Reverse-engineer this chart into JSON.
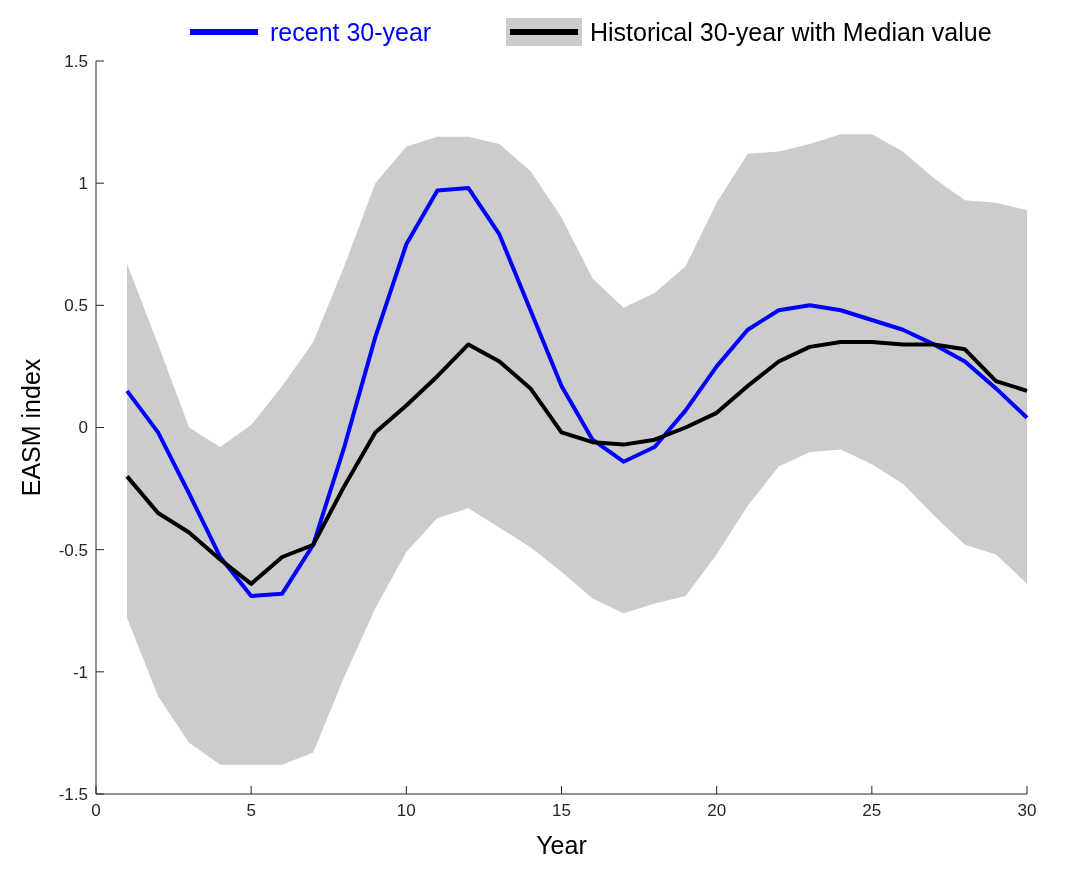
{
  "chart_data": {
    "type": "line",
    "xlabel": "Year",
    "ylabel": "EASM index",
    "x": [
      1,
      2,
      3,
      4,
      5,
      6,
      7,
      8,
      9,
      10,
      11,
      12,
      13,
      14,
      15,
      16,
      17,
      18,
      19,
      20,
      21,
      22,
      23,
      24,
      25,
      26,
      27,
      28,
      29,
      30
    ],
    "xlim": [
      0,
      30
    ],
    "ylim": [
      -1.5,
      1.5
    ],
    "xticks": [
      0,
      5,
      10,
      15,
      20,
      25,
      30
    ],
    "yticks": [
      -1.5,
      -1,
      -0.5,
      0,
      0.5,
      1,
      1.5
    ],
    "grid": false,
    "legend": "top",
    "line_style": "solid",
    "marker": "none",
    "series": [
      {
        "name": "recent 30-year",
        "color": "#0000ff",
        "values": [
          0.15,
          -0.02,
          -0.27,
          -0.53,
          -0.69,
          -0.68,
          -0.48,
          -0.08,
          0.37,
          0.75,
          0.97,
          0.98,
          0.79,
          0.48,
          0.17,
          -0.05,
          -0.14,
          -0.08,
          0.07,
          0.25,
          0.4,
          0.48,
          0.5,
          0.48,
          0.44,
          0.4,
          0.34,
          0.27,
          0.16,
          0.04
        ]
      },
      {
        "name": "Historical 30-year with Median value",
        "color": "#000000",
        "values": [
          -0.2,
          -0.35,
          -0.43,
          -0.54,
          -0.64,
          -0.53,
          -0.48,
          -0.24,
          -0.02,
          0.09,
          0.21,
          0.34,
          0.27,
          0.16,
          -0.02,
          -0.06,
          -0.07,
          -0.05,
          0.0,
          0.06,
          0.17,
          0.27,
          0.33,
          0.35,
          0.35,
          0.34,
          0.34,
          0.32,
          0.19,
          0.15
        ],
        "lower": [
          -0.78,
          -1.1,
          -1.29,
          -1.38,
          -1.38,
          -1.38,
          -1.33,
          -1.02,
          -0.74,
          -0.51,
          -0.37,
          -0.33,
          -0.41,
          -0.49,
          -0.59,
          -0.7,
          -0.76,
          -0.72,
          -0.69,
          -0.52,
          -0.32,
          -0.16,
          -0.1,
          -0.09,
          -0.15,
          -0.23,
          -0.36,
          -0.48,
          -0.52,
          -0.64
        ],
        "upper": [
          0.67,
          0.34,
          0.0,
          -0.08,
          0.01,
          0.17,
          0.35,
          0.66,
          1.0,
          1.15,
          1.19,
          1.19,
          1.16,
          1.05,
          0.86,
          0.61,
          0.49,
          0.55,
          0.66,
          0.92,
          1.12,
          1.13,
          1.16,
          1.2,
          1.2,
          1.13,
          1.02,
          0.93,
          0.92,
          0.89
        ]
      }
    ]
  }
}
